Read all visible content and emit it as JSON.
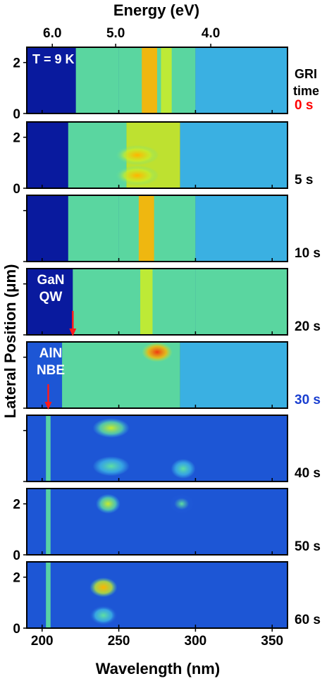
{
  "chart_data": {
    "type": "heatmap",
    "top_axis": {
      "label": "Energy (eV)",
      "ticks": [
        {
          "label": "6.0",
          "energy_eV": 6.0
        },
        {
          "label": "5.0",
          "energy_eV": 5.0
        },
        {
          "label": "4.0",
          "energy_eV": 4.0
        }
      ]
    },
    "x_axis": {
      "label": "Wavelength (nm)",
      "range": [
        190,
        360
      ],
      "ticks": [
        200,
        250,
        300,
        350
      ]
    },
    "y_axis": {
      "label": "Lateral Position (μm)",
      "range": [
        0,
        2.6
      ],
      "ticks": [
        0,
        2
      ]
    },
    "colormap": [
      "#0a1a9e",
      "#1f5ad8",
      "#3db8e6",
      "#5fe0a0",
      "#c8ec2a",
      "#ffb400",
      "#f03a10"
    ],
    "header_label": "GRI\ntime",
    "panels": [
      {
        "time": "0 s",
        "time_color": "#ff0000",
        "y_ticks_shown": true,
        "note": "T = 9 K",
        "features": [
          {
            "from": 190,
            "to": 222,
            "level": 0.0,
            "kind": "band"
          },
          {
            "from": 222,
            "to": 250,
            "level": 0.42,
            "kind": "band"
          },
          {
            "from": 250,
            "to": 300,
            "level": 0.58,
            "kind": "band"
          },
          {
            "from": 300,
            "to": 360,
            "level": 0.38,
            "kind": "band"
          },
          {
            "center": 270,
            "width": 10,
            "level": 0.85,
            "kind": "line"
          },
          {
            "center": 281,
            "width": 7,
            "level": 0.72,
            "kind": "line"
          }
        ]
      },
      {
        "time": "5 s",
        "time_color": "#000000",
        "y_ticks_shown": true,
        "note": "",
        "features": [
          {
            "from": 190,
            "to": 217,
            "level": 0.05,
            "kind": "band"
          },
          {
            "from": 217,
            "to": 255,
            "level": 0.48,
            "kind": "band"
          },
          {
            "from": 255,
            "to": 290,
            "level": 0.62,
            "kind": "band"
          },
          {
            "from": 290,
            "to": 360,
            "level": 0.3,
            "kind": "band"
          },
          {
            "center": 262,
            "width": 14,
            "level": 0.82,
            "kind": "spot",
            "pos": 1.3
          },
          {
            "center": 262,
            "width": 14,
            "level": 0.85,
            "kind": "spot",
            "pos": 0.5
          }
        ]
      },
      {
        "time": "10 s",
        "time_color": "#000000",
        "y_ticks_shown": false,
        "note": "",
        "features": [
          {
            "from": 190,
            "to": 217,
            "level": 0.04,
            "kind": "band"
          },
          {
            "from": 217,
            "to": 250,
            "level": 0.45,
            "kind": "band"
          },
          {
            "from": 250,
            "to": 300,
            "level": 0.55,
            "kind": "band"
          },
          {
            "from": 300,
            "to": 360,
            "level": 0.25,
            "kind": "band"
          },
          {
            "center": 268,
            "width": 10,
            "level": 0.78,
            "kind": "line"
          }
        ]
      },
      {
        "time": "20 s",
        "time_color": "#000000",
        "y_ticks_shown": false,
        "note": "GaN\nQW",
        "arrow_nm": 220,
        "features": [
          {
            "from": 190,
            "to": 220,
            "level": 0.04,
            "kind": "band"
          },
          {
            "from": 220,
            "to": 300,
            "level": 0.55,
            "kind": "band"
          },
          {
            "from": 300,
            "to": 360,
            "level": 0.42,
            "kind": "band"
          },
          {
            "center": 268,
            "width": 8,
            "level": 0.74,
            "kind": "line"
          }
        ]
      },
      {
        "time": "30 s",
        "time_color": "#1a3fd0",
        "y_ticks_shown": false,
        "note": "AlN\nNBE",
        "arrow_nm": 204,
        "features": [
          {
            "from": 190,
            "to": 213,
            "level": 0.12,
            "kind": "band"
          },
          {
            "from": 213,
            "to": 290,
            "level": 0.52,
            "kind": "band"
          },
          {
            "from": 290,
            "to": 360,
            "level": 0.3,
            "kind": "band"
          },
          {
            "center": 275,
            "width": 10,
            "level": 0.95,
            "kind": "spot",
            "pos": 2.2
          }
        ]
      },
      {
        "time": "40 s",
        "time_color": "#000000",
        "y_ticks_shown": false,
        "note": "",
        "features": [
          {
            "from": 190,
            "to": 360,
            "level": 0.12,
            "kind": "band"
          },
          {
            "center": 204,
            "width": 3,
            "level": 0.45,
            "kind": "line"
          },
          {
            "center": 245,
            "width": 12,
            "level": 0.6,
            "kind": "spot",
            "pos": 2.1
          },
          {
            "center": 245,
            "width": 12,
            "level": 0.55,
            "kind": "spot",
            "pos": 0.6
          },
          {
            "center": 292,
            "width": 8,
            "level": 0.58,
            "kind": "spot",
            "pos": 0.5
          }
        ]
      },
      {
        "time": "50 s",
        "time_color": "#000000",
        "y_ticks_shown": true,
        "note": "",
        "features": [
          {
            "from": 190,
            "to": 360,
            "level": 0.1,
            "kind": "band"
          },
          {
            "center": 204,
            "width": 3,
            "level": 0.48,
            "kind": "line"
          },
          {
            "center": 243,
            "width": 8,
            "level": 0.7,
            "kind": "spot",
            "pos": 2.0
          },
          {
            "center": 291,
            "width": 8,
            "level": 0.42,
            "kind": "spot",
            "pos": 2.0
          }
        ]
      },
      {
        "time": "60 s",
        "time_color": "#000000",
        "y_ticks_shown": true,
        "note": "",
        "features": [
          {
            "from": 190,
            "to": 360,
            "level": 0.1,
            "kind": "band"
          },
          {
            "center": 204,
            "width": 3,
            "level": 0.5,
            "kind": "line"
          },
          {
            "center": 240,
            "width": 9,
            "level": 0.8,
            "kind": "spot",
            "pos": 1.6
          },
          {
            "center": 240,
            "width": 9,
            "level": 0.5,
            "kind": "spot",
            "pos": 0.5
          }
        ]
      }
    ]
  }
}
